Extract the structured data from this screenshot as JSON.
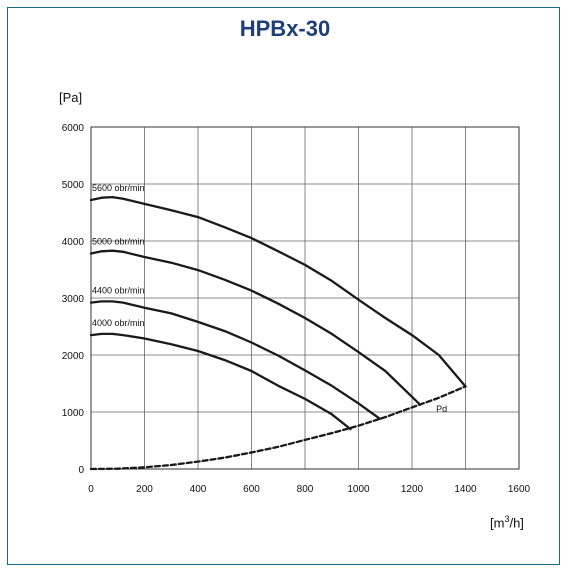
{
  "title": "HPBx-30",
  "colors": {
    "title": "#1f3f7a",
    "frame": "#1a6a8a",
    "curve": "#1a1a1a"
  },
  "chart_data": {
    "type": "line",
    "title": "HPBx-30",
    "xlabel": "[m³/h]",
    "xlabel_base": "[m",
    "xlabel_sup": "3",
    "xlabel_tail": "/h]",
    "ylabel": "[Pa]",
    "xlim": [
      0,
      1600
    ],
    "ylim": [
      0,
      6000
    ],
    "xticks": [
      0,
      200,
      400,
      600,
      800,
      1000,
      1200,
      1400,
      1600
    ],
    "yticks": [
      0,
      1000,
      2000,
      3000,
      4000,
      5000,
      6000
    ],
    "grid": true,
    "series": [
      {
        "name": "5600 obr/min",
        "style": "solid",
        "x": [
          0,
          40,
          80,
          120,
          200,
          300,
          400,
          500,
          600,
          700,
          800,
          900,
          1000,
          1100,
          1200,
          1300,
          1400
        ],
        "y": [
          4720,
          4760,
          4770,
          4740,
          4650,
          4540,
          4420,
          4240,
          4050,
          3820,
          3580,
          3300,
          2970,
          2650,
          2350,
          2000,
          1450
        ]
      },
      {
        "name": "5000 obr/min",
        "style": "solid",
        "x": [
          0,
          40,
          80,
          120,
          200,
          300,
          400,
          500,
          600,
          700,
          800,
          900,
          1000,
          1100,
          1230
        ],
        "y": [
          3780,
          3820,
          3830,
          3810,
          3720,
          3620,
          3490,
          3320,
          3130,
          2900,
          2650,
          2370,
          2050,
          1720,
          1130
        ]
      },
      {
        "name": "4400 obr/min",
        "style": "solid",
        "x": [
          0,
          40,
          80,
          120,
          200,
          300,
          400,
          500,
          600,
          700,
          800,
          900,
          1000,
          1080
        ],
        "y": [
          2920,
          2940,
          2940,
          2920,
          2830,
          2730,
          2580,
          2420,
          2220,
          1990,
          1730,
          1460,
          1150,
          880
        ]
      },
      {
        "name": "4000 obr/min",
        "style": "solid",
        "x": [
          0,
          40,
          80,
          120,
          200,
          300,
          400,
          500,
          600,
          700,
          800,
          900,
          970
        ],
        "y": [
          2350,
          2370,
          2370,
          2350,
          2290,
          2190,
          2070,
          1910,
          1720,
          1460,
          1230,
          960,
          700
        ]
      },
      {
        "name": "Pd",
        "style": "dashed",
        "x": [
          0,
          100,
          200,
          300,
          400,
          500,
          600,
          700,
          800,
          900,
          1000,
          1100,
          1200,
          1300,
          1400
        ],
        "y": [
          0,
          5,
          30,
          70,
          130,
          200,
          290,
          390,
          510,
          630,
          760,
          910,
          1080,
          1250,
          1450
        ]
      }
    ]
  }
}
